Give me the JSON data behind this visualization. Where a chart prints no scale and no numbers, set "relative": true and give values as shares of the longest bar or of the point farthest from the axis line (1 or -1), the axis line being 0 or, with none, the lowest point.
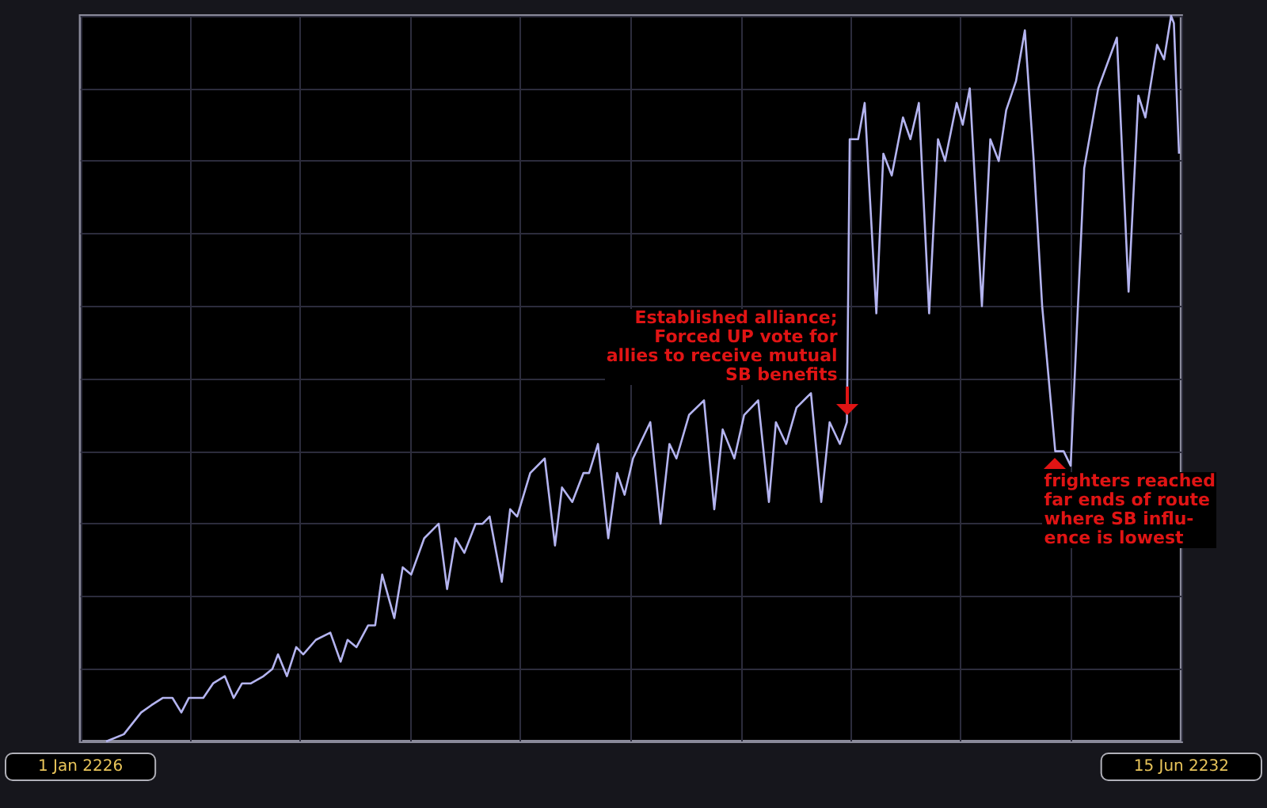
{
  "chart_data": {
    "type": "line",
    "relative": true,
    "color": "#b4b4f0",
    "grid": true,
    "xlim": [
      "2226-01-01",
      "2232-06-15"
    ],
    "xticks": [
      {
        "value": "2226-01-01",
        "label": "1 Jan 2226"
      },
      {
        "value": "2226-08-23",
        "label": null
      },
      {
        "value": "2227-04-16",
        "label": null
      },
      {
        "value": "2227-12-08",
        "label": null
      },
      {
        "value": "2228-07-30",
        "label": null
      },
      {
        "value": "2229-03-23",
        "label": null
      },
      {
        "value": "2229-11-15",
        "label": null
      },
      {
        "value": "2230-07-07",
        "label": null
      },
      {
        "value": "2231-02-28",
        "label": null
      },
      {
        "value": "2231-10-22",
        "label": null
      },
      {
        "value": "2232-06-15",
        "label": "15 Jun 2232"
      }
    ],
    "x": [
      "2226-02-25",
      "2226-04-04",
      "2226-05-11",
      "2226-06-02",
      "2226-06-26",
      "2226-07-17",
      "2226-08-05",
      "2226-08-21",
      "2226-09-06",
      "2226-09-21",
      "2226-10-12",
      "2226-11-06",
      "2226-11-25",
      "2226-12-13",
      "2227-01-01",
      "2227-01-28",
      "2227-02-16",
      "2227-02-28",
      "2227-03-19",
      "2227-04-08",
      "2227-04-23",
      "2227-05-20",
      "2227-06-20",
      "2227-07-12",
      "2227-07-27",
      "2227-08-15",
      "2227-09-09",
      "2227-09-24",
      "2227-10-09",
      "2227-11-04",
      "2227-11-22",
      "2227-12-10",
      "2228-01-07",
      "2228-02-07",
      "2228-02-25",
      "2228-03-14",
      "2228-04-02",
      "2228-04-26",
      "2228-05-11",
      "2228-05-26",
      "2228-06-21",
      "2228-07-09",
      "2228-07-24",
      "2228-08-21",
      "2228-09-21",
      "2228-10-13",
      "2228-10-28",
      "2228-11-19",
      "2228-12-13",
      "2228-12-25",
      "2229-01-13",
      "2229-02-04",
      "2229-02-23",
      "2229-03-11",
      "2229-03-29",
      "2229-05-05",
      "2229-05-27",
      "2229-06-15",
      "2229-06-30",
      "2229-07-27",
      "2229-08-28",
      "2229-09-19",
      "2229-10-07",
      "2229-11-01",
      "2229-11-22",
      "2229-12-22",
      "2230-01-14",
      "2230-01-29",
      "2230-02-20",
      "2230-03-14",
      "2230-04-14",
      "2230-05-06",
      "2230-05-24",
      "2230-06-15",
      "2230-06-30",
      "2230-07-06",
      "2230-07-24",
      "2230-08-07",
      "2230-09-01",
      "2230-09-16",
      "2230-10-04",
      "2230-10-28",
      "2230-11-13",
      "2230-12-01",
      "2230-12-23",
      "2231-01-11",
      "2231-01-26",
      "2231-02-20",
      "2231-03-05",
      "2231-03-20",
      "2231-04-15",
      "2231-05-03",
      "2231-05-21",
      "2231-06-06",
      "2231-06-27",
      "2231-07-16",
      "2231-08-04",
      "2231-08-22",
      "2231-09-19",
      "2231-10-07",
      "2231-10-22",
      "2231-11-20",
      "2231-12-20",
      "2232-01-29",
      "2232-02-23",
      "2232-03-15",
      "2232-03-30",
      "2232-04-24",
      "2232-05-09",
      "2232-05-24",
      "2232-05-30",
      "2232-06-10"
    ],
    "values": [
      0.0,
      0.01,
      0.04,
      0.05,
      0.06,
      0.06,
      0.04,
      0.06,
      0.06,
      0.06,
      0.08,
      0.09,
      0.06,
      0.08,
      0.08,
      0.09,
      0.1,
      0.12,
      0.09,
      0.13,
      0.12,
      0.14,
      0.15,
      0.11,
      0.14,
      0.13,
      0.16,
      0.16,
      0.23,
      0.17,
      0.24,
      0.23,
      0.28,
      0.3,
      0.21,
      0.28,
      0.26,
      0.3,
      0.3,
      0.31,
      0.22,
      0.32,
      0.31,
      0.37,
      0.39,
      0.27,
      0.35,
      0.33,
      0.37,
      0.37,
      0.41,
      0.28,
      0.37,
      0.34,
      0.39,
      0.44,
      0.3,
      0.41,
      0.39,
      0.45,
      0.47,
      0.32,
      0.43,
      0.39,
      0.45,
      0.47,
      0.33,
      0.44,
      0.41,
      0.46,
      0.48,
      0.33,
      0.44,
      0.41,
      0.44,
      0.83,
      0.83,
      0.88,
      0.59,
      0.81,
      0.78,
      0.86,
      0.83,
      0.88,
      0.59,
      0.83,
      0.8,
      0.88,
      0.85,
      0.9,
      0.6,
      0.83,
      0.8,
      0.87,
      0.91,
      0.98,
      0.8,
      0.6,
      0.4,
      0.4,
      0.38,
      0.79,
      0.9,
      0.97,
      0.62,
      0.89,
      0.86,
      0.96,
      0.94,
      1.0,
      0.99,
      0.81
    ],
    "annotations": [
      {
        "text": "Established alliance;\nForced UP vote for\nallies to receive mutual\nSB benefits",
        "x": "2230-06-30",
        "y": 0.44
      },
      {
        "text": "frighters reached\nfar ends of route\nwhere SB influ-\nence is lowest",
        "x": "2231-09-19",
        "y": 0.4
      }
    ]
  }
}
